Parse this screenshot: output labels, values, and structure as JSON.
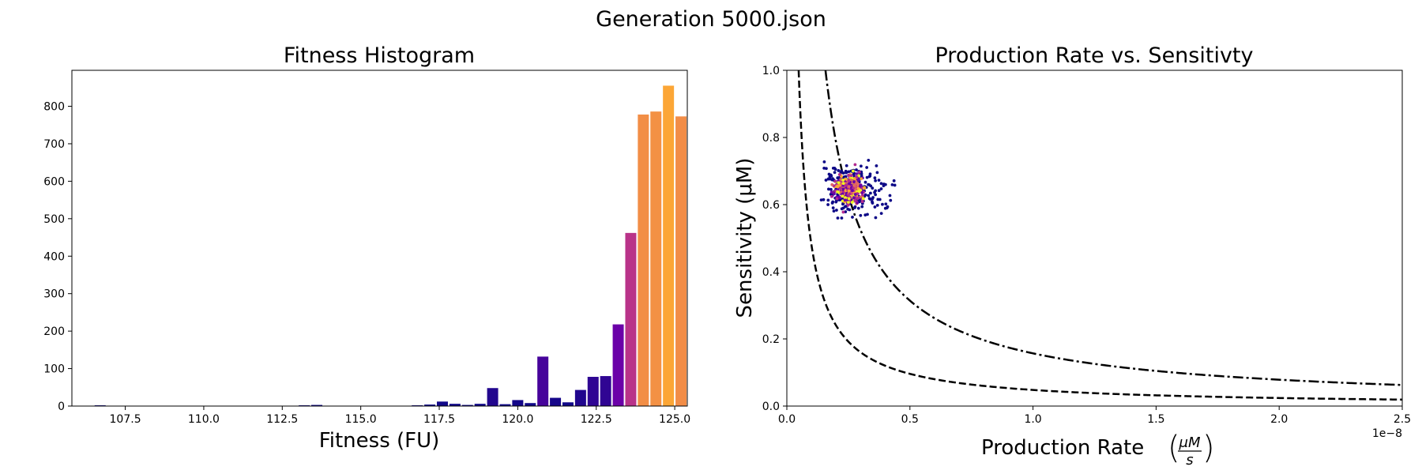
{
  "figure": {
    "suptitle": "Generation 5000.json"
  },
  "chart_data": [
    {
      "type": "bar",
      "title": "Fitness Histogram",
      "xlabel": "Fitness (FU)",
      "ylabel": "",
      "xlim": [
        105.8,
        125.4
      ],
      "ylim": [
        0,
        896
      ],
      "xticks": [
        107.5,
        110.0,
        112.5,
        115.0,
        117.5,
        120.0,
        122.5,
        125.0
      ],
      "xtick_labels": [
        "107.5",
        "110.0",
        "112.5",
        "115.0",
        "117.5",
        "120.0",
        "122.5",
        "125.0"
      ],
      "yticks": [
        0,
        100,
        200,
        300,
        400,
        500,
        600,
        700,
        800
      ],
      "ytick_labels": [
        "0",
        "100",
        "200",
        "300",
        "400",
        "500",
        "600",
        "700",
        "800"
      ],
      "bin_width": 0.4,
      "colormap": "plasma",
      "bins": [
        {
          "x": 106.7,
          "value": 2
        },
        {
          "x": 113.2,
          "value": 2
        },
        {
          "x": 113.6,
          "value": 3
        },
        {
          "x": 116.4,
          "value": 1
        },
        {
          "x": 116.8,
          "value": 2
        },
        {
          "x": 117.2,
          "value": 4
        },
        {
          "x": 117.6,
          "value": 12
        },
        {
          "x": 118.0,
          "value": 6
        },
        {
          "x": 118.4,
          "value": 3
        },
        {
          "x": 118.8,
          "value": 6
        },
        {
          "x": 119.2,
          "value": 48
        },
        {
          "x": 119.6,
          "value": 5
        },
        {
          "x": 120.0,
          "value": 16
        },
        {
          "x": 120.4,
          "value": 8
        },
        {
          "x": 120.8,
          "value": 132
        },
        {
          "x": 121.2,
          "value": 22
        },
        {
          "x": 121.6,
          "value": 10
        },
        {
          "x": 122.0,
          "value": 43
        },
        {
          "x": 122.4,
          "value": 78
        },
        {
          "x": 122.8,
          "value": 80
        },
        {
          "x": 123.2,
          "value": 218
        },
        {
          "x": 123.6,
          "value": 462
        },
        {
          "x": 124.0,
          "value": 778
        },
        {
          "x": 124.4,
          "value": 786
        },
        {
          "x": 124.8,
          "value": 855
        },
        {
          "x": 125.2,
          "value": 773
        }
      ]
    },
    {
      "type": "scatter",
      "title": "Production Rate vs. Sensitivty",
      "xlabel": "Production Rate",
      "xlabel_unit_numerator": "μM",
      "xlabel_unit_denominator": "s",
      "ylabel": "Sensitivity (μM)",
      "x_offset_label": "1e−8",
      "xlim": [
        0,
        2.5
      ],
      "ylim": [
        0,
        1.0
      ],
      "xticks": [
        0.0,
        0.5,
        1.0,
        1.5,
        2.0,
        2.5
      ],
      "xtick_labels": [
        "0.0",
        "0.5",
        "1.0",
        "1.5",
        "2.0",
        "2.5"
      ],
      "yticks": [
        0.0,
        0.2,
        0.4,
        0.6,
        0.8,
        1.0
      ],
      "ytick_labels": [
        "0.0",
        "0.2",
        "0.4",
        "0.6",
        "0.8",
        "1.0"
      ],
      "curves": [
        {
          "style": "dashed",
          "k": 0.048
        },
        {
          "style": "dashdot",
          "k": 0.157
        }
      ],
      "cluster": {
        "center": [
          0.255,
          0.645
        ],
        "x_range": [
          0.14,
          0.44
        ],
        "y_range": [
          0.56,
          0.74
        ],
        "colors": [
          "#0d0887",
          "#6a00a8",
          "#b12a90",
          "#e16462",
          "#fca636",
          "#f0f921"
        ]
      }
    }
  ]
}
